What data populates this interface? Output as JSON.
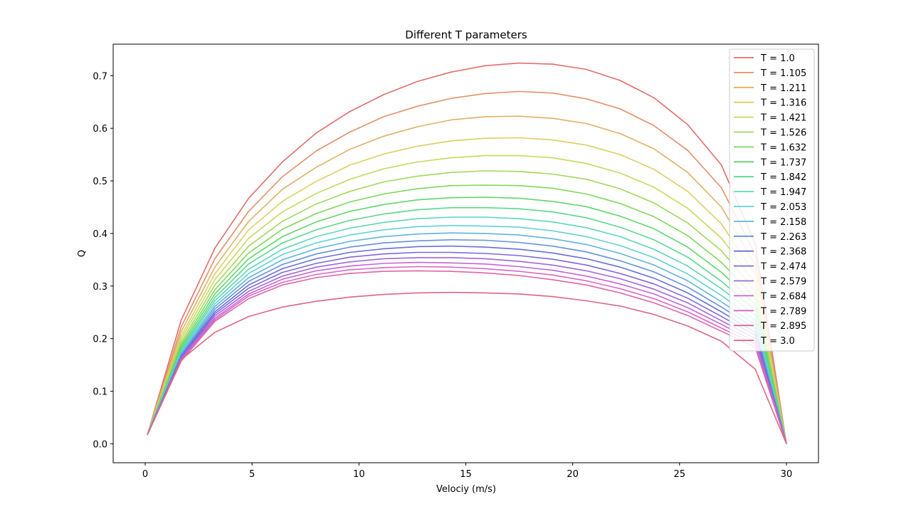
{
  "chart_data": {
    "type": "line",
    "title": "Different T parameters",
    "xlabel": "Velociy (m/s)",
    "ylabel": "Q",
    "xlim": [
      -1.5,
      31.5
    ],
    "ylim": [
      -0.036,
      0.76
    ],
    "xticks": [
      0,
      5,
      10,
      15,
      20,
      25,
      30
    ],
    "yticks": [
      0.0,
      0.1,
      0.2,
      0.3,
      0.4,
      0.5,
      0.6,
      0.7
    ],
    "xtick_labels": [
      "0",
      "5",
      "10",
      "15",
      "20",
      "25",
      "30"
    ],
    "ytick_labels": [
      "0.0",
      "0.1",
      "0.2",
      "0.3",
      "0.4",
      "0.5",
      "0.6",
      "0.7"
    ],
    "grid": false,
    "legend_position": "top-right",
    "x": [
      0.1,
      1.68,
      3.26,
      4.84,
      6.42,
      8.0,
      9.58,
      11.16,
      12.74,
      14.32,
      15.9,
      17.48,
      19.06,
      20.64,
      22.22,
      23.8,
      25.38,
      26.96,
      28.54,
      30.0
    ],
    "series": [
      {
        "name": "T = 1.0",
        "color": "#e26d6b",
        "values": [
          0.017,
          0.235,
          0.372,
          0.467,
          0.536,
          0.591,
          0.632,
          0.664,
          0.689,
          0.707,
          0.719,
          0.724,
          0.722,
          0.712,
          0.691,
          0.658,
          0.607,
          0.53,
          0.38,
          0.0
        ]
      },
      {
        "name": "T = 1.105",
        "color": "#e3906a",
        "values": [
          0.017,
          0.222,
          0.352,
          0.442,
          0.508,
          0.557,
          0.593,
          0.622,
          0.642,
          0.657,
          0.666,
          0.67,
          0.667,
          0.656,
          0.637,
          0.605,
          0.558,
          0.487,
          0.36,
          0.0
        ]
      },
      {
        "name": "T = 1.211",
        "color": "#e0b064",
        "values": [
          0.017,
          0.213,
          0.336,
          0.423,
          0.484,
          0.526,
          0.56,
          0.585,
          0.603,
          0.616,
          0.622,
          0.623,
          0.619,
          0.609,
          0.59,
          0.561,
          0.516,
          0.45,
          0.34,
          0.0
        ]
      },
      {
        "name": "T = 1.316",
        "color": "#dccf62",
        "values": [
          0.017,
          0.205,
          0.323,
          0.407,
          0.461,
          0.499,
          0.53,
          0.551,
          0.566,
          0.576,
          0.581,
          0.582,
          0.578,
          0.568,
          0.55,
          0.522,
          0.48,
          0.418,
          0.322,
          0.0
        ]
      },
      {
        "name": "T = 1.421",
        "color": "#c6d85e",
        "values": [
          0.017,
          0.199,
          0.312,
          0.391,
          0.441,
          0.476,
          0.503,
          0.523,
          0.536,
          0.544,
          0.548,
          0.548,
          0.544,
          0.533,
          0.515,
          0.488,
          0.448,
          0.391,
          0.306,
          0.0
        ]
      },
      {
        "name": "T = 1.526",
        "color": "#a2d85c",
        "values": [
          0.017,
          0.193,
          0.302,
          0.376,
          0.423,
          0.456,
          0.48,
          0.498,
          0.509,
          0.516,
          0.519,
          0.518,
          0.513,
          0.503,
          0.485,
          0.458,
          0.42,
          0.367,
          0.291,
          0.0
        ]
      },
      {
        "name": "T = 1.632",
        "color": "#7ed85c",
        "values": [
          0.017,
          0.188,
          0.293,
          0.363,
          0.408,
          0.438,
          0.46,
          0.475,
          0.485,
          0.491,
          0.492,
          0.491,
          0.486,
          0.475,
          0.457,
          0.432,
          0.396,
          0.345,
          0.277,
          0.0
        ]
      },
      {
        "name": "T = 1.737",
        "color": "#5fd66a",
        "values": [
          0.017,
          0.184,
          0.285,
          0.352,
          0.394,
          0.422,
          0.442,
          0.455,
          0.464,
          0.468,
          0.469,
          0.467,
          0.461,
          0.451,
          0.433,
          0.409,
          0.374,
          0.326,
          0.265,
          0.0
        ]
      },
      {
        "name": "T = 1.842",
        "color": "#5dd68e",
        "values": [
          0.017,
          0.18,
          0.278,
          0.342,
          0.382,
          0.407,
          0.425,
          0.437,
          0.445,
          0.449,
          0.449,
          0.447,
          0.441,
          0.43,
          0.412,
          0.388,
          0.355,
          0.309,
          0.254,
          0.0
        ]
      },
      {
        "name": "T = 1.947",
        "color": "#5ed6b4",
        "values": [
          0.017,
          0.177,
          0.272,
          0.332,
          0.37,
          0.394,
          0.41,
          0.421,
          0.428,
          0.431,
          0.431,
          0.428,
          0.422,
          0.411,
          0.394,
          0.37,
          0.338,
          0.295,
          0.244,
          0.0
        ]
      },
      {
        "name": "T = 2.053",
        "color": "#5fd3d6",
        "values": [
          0.017,
          0.174,
          0.266,
          0.324,
          0.36,
          0.382,
          0.397,
          0.407,
          0.413,
          0.415,
          0.414,
          0.412,
          0.405,
          0.394,
          0.377,
          0.354,
          0.323,
          0.282,
          0.235,
          0.0
        ]
      },
      {
        "name": "T = 2.158",
        "color": "#60b2df",
        "values": [
          0.017,
          0.171,
          0.261,
          0.316,
          0.35,
          0.371,
          0.385,
          0.394,
          0.399,
          0.401,
          0.4,
          0.397,
          0.39,
          0.379,
          0.362,
          0.34,
          0.31,
          0.27,
          0.227,
          0.0
        ]
      },
      {
        "name": "T = 2.263",
        "color": "#6591dc",
        "values": [
          0.017,
          0.168,
          0.256,
          0.309,
          0.341,
          0.361,
          0.374,
          0.382,
          0.386,
          0.388,
          0.387,
          0.383,
          0.376,
          0.365,
          0.348,
          0.327,
          0.298,
          0.26,
          0.219,
          0.0
        ]
      },
      {
        "name": "T = 2.368",
        "color": "#6570dc",
        "values": [
          0.017,
          0.166,
          0.251,
          0.302,
          0.333,
          0.352,
          0.364,
          0.371,
          0.375,
          0.376,
          0.374,
          0.37,
          0.363,
          0.352,
          0.336,
          0.315,
          0.287,
          0.251,
          0.212,
          0.0
        ]
      },
      {
        "name": "T = 2.474",
        "color": "#7f68da",
        "values": [
          0.017,
          0.164,
          0.247,
          0.296,
          0.326,
          0.343,
          0.355,
          0.361,
          0.364,
          0.364,
          0.362,
          0.358,
          0.351,
          0.34,
          0.324,
          0.304,
          0.277,
          0.242,
          0.206,
          0.0
        ]
      },
      {
        "name": "T = 2.579",
        "color": "#a167d9",
        "values": [
          0.017,
          0.162,
          0.243,
          0.29,
          0.319,
          0.336,
          0.346,
          0.352,
          0.354,
          0.354,
          0.352,
          0.347,
          0.34,
          0.329,
          0.314,
          0.294,
          0.268,
          0.234,
          0.2,
          0.0
        ]
      },
      {
        "name": "T = 2.684",
        "color": "#c366d6",
        "values": [
          0.017,
          0.16,
          0.239,
          0.285,
          0.313,
          0.329,
          0.338,
          0.343,
          0.345,
          0.344,
          0.342,
          0.337,
          0.33,
          0.319,
          0.304,
          0.285,
          0.259,
          0.227,
          0.194,
          0.0
        ]
      },
      {
        "name": "T = 2.789",
        "color": "#da66c8",
        "values": [
          0.017,
          0.159,
          0.236,
          0.281,
          0.307,
          0.322,
          0.331,
          0.335,
          0.337,
          0.336,
          0.333,
          0.328,
          0.321,
          0.31,
          0.295,
          0.276,
          0.251,
          0.22,
          0.189,
          0.0
        ]
      },
      {
        "name": "T = 2.895",
        "color": "#dc66a5",
        "values": [
          0.017,
          0.157,
          0.233,
          0.276,
          0.302,
          0.316,
          0.324,
          0.328,
          0.329,
          0.328,
          0.325,
          0.32,
          0.312,
          0.302,
          0.287,
          0.268,
          0.244,
          0.214,
          0.184,
          0.0
        ]
      },
      {
        "name": "T = 3.0",
        "color": "#dd6683",
        "values": [
          0.017,
          0.16,
          0.212,
          0.242,
          0.26,
          0.271,
          0.279,
          0.284,
          0.287,
          0.288,
          0.287,
          0.285,
          0.28,
          0.272,
          0.262,
          0.246,
          0.224,
          0.195,
          0.142,
          0.0
        ]
      }
    ]
  }
}
